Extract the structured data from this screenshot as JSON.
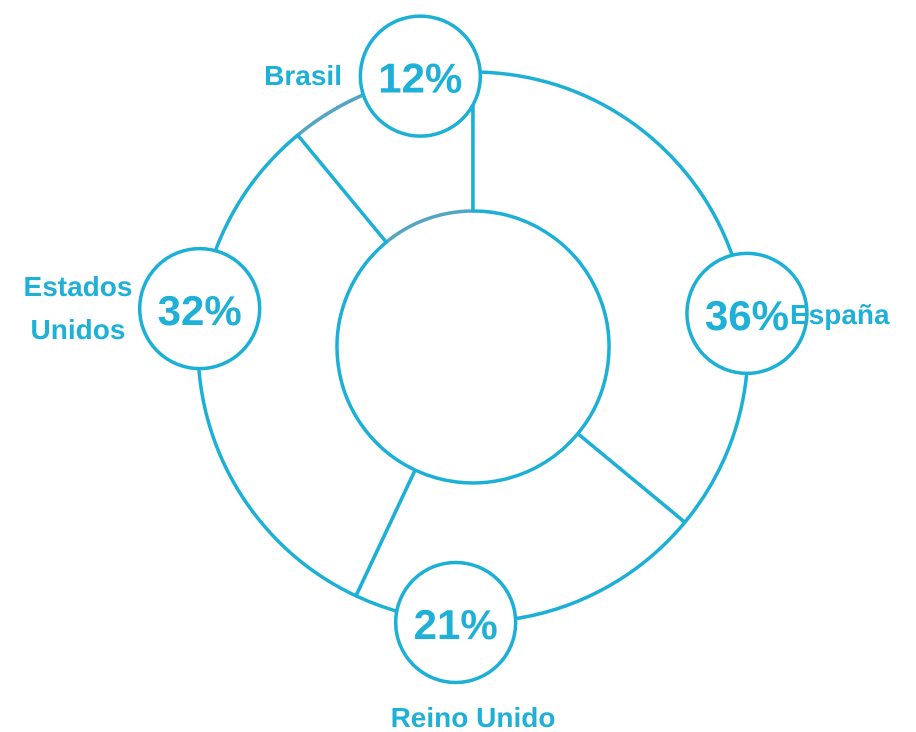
{
  "chart_data": {
    "type": "donut",
    "categories": [
      "Brasil",
      "España",
      "Reino Unido",
      "Estados Unidos"
    ],
    "values": [
      12,
      36,
      21,
      32
    ],
    "value_labels": [
      "12%",
      "36%",
      "21%",
      "32%"
    ],
    "colors": [
      "#52a6c4",
      "#1cb0d6",
      "#1cb0d6",
      "#1cb0d6"
    ]
  }
}
